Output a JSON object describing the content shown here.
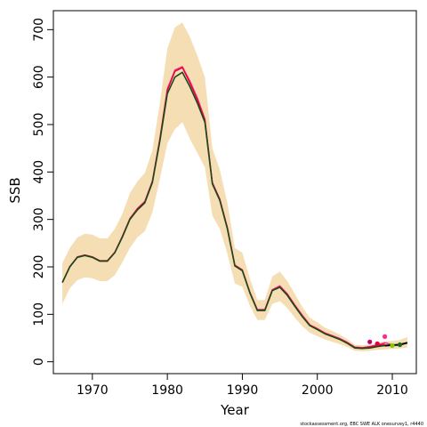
{
  "chart_data": {
    "type": "line",
    "xlabel": "Year",
    "ylabel": "SSB",
    "xlim": [
      1964.8,
      2013.2
    ],
    "ylim": [
      -25,
      740
    ],
    "x_ticks": [
      1970,
      1980,
      1990,
      2000,
      2010
    ],
    "y_ticks": [
      0,
      100,
      200,
      300,
      400,
      500,
      600,
      700
    ],
    "credit": "stockassessment.org, EBC SWE ALK onesurvey1, r4440",
    "colors": {
      "band": "#f5deb3",
      "final_line": "#000000",
      "retro_dark": "#1a4a1a",
      "retro_red": "#e0003c",
      "retro_pink": "#ff2a8a"
    },
    "years": [
      1966,
      1967,
      1968,
      1969,
      1970,
      1971,
      1972,
      1973,
      1974,
      1975,
      1976,
      1977,
      1978,
      1979,
      1980,
      1981,
      1982,
      1983,
      1984,
      1985,
      1986,
      1987,
      1988,
      1989,
      1990,
      1991,
      1992,
      1993,
      1994,
      1995,
      1996,
      1997,
      1998,
      1999,
      2000,
      2001,
      2002,
      2003,
      2004,
      2005,
      2006,
      2007,
      2008,
      2009,
      2010,
      2011,
      2012
    ],
    "series": [
      {
        "role": "estimate",
        "values": [
          167,
          200,
          220,
          224,
          220,
          212,
          212,
          230,
          263,
          300,
          320,
          335,
          378,
          465,
          565,
          600,
          610,
          580,
          545,
          505,
          375,
          340,
          280,
          202,
          192,
          145,
          108,
          108,
          150,
          157,
          140,
          117,
          95,
          76,
          68,
          59,
          53,
          47,
          39,
          29,
          28,
          29,
          32,
          34,
          35,
          36,
          40
        ]
      },
      {
        "role": "retro-1",
        "values": [
          167,
          201,
          221,
          225,
          221,
          213,
          213,
          231,
          265,
          302,
          323,
          338,
          381,
          470,
          575,
          615,
          622,
          592,
          556,
          512,
          378,
          343,
          283,
          204,
          194,
          147,
          110,
          110,
          152,
          160,
          143,
          120,
          98,
          78,
          70,
          61,
          55,
          49,
          41,
          31,
          30,
          32,
          36,
          40,
          36
        ]
      },
      {
        "role": "retro-2",
        "values": [
          167,
          201,
          221,
          225,
          221,
          213,
          213,
          231,
          264,
          301,
          322,
          337,
          380,
          469,
          572,
          612,
          620,
          588,
          552,
          509,
          377,
          342,
          282,
          203,
          193,
          146,
          109,
          109,
          151,
          158,
          142,
          118,
          96,
          77,
          69,
          60,
          54,
          48,
          40,
          30,
          29,
          31,
          34,
          37
        ]
      }
    ],
    "band": {
      "lower": [
        122,
        155,
        172,
        178,
        176,
        170,
        170,
        183,
        210,
        240,
        262,
        275,
        315,
        385,
        460,
        490,
        505,
        470,
        440,
        410,
        308,
        280,
        228,
        165,
        158,
        118,
        88,
        88,
        122,
        128,
        113,
        93,
        75,
        61,
        54,
        47,
        42,
        37,
        31,
        23,
        22,
        23,
        25,
        26,
        27,
        28,
        30
      ],
      "upper": [
        208,
        240,
        262,
        270,
        268,
        260,
        260,
        280,
        312,
        355,
        380,
        398,
        445,
        545,
        660,
        705,
        715,
        685,
        645,
        600,
        450,
        405,
        335,
        240,
        230,
        175,
        130,
        130,
        180,
        190,
        170,
        143,
        115,
        93,
        83,
        72,
        65,
        57,
        48,
        36,
        35,
        36,
        40,
        43,
        44,
        46,
        52
      ]
    },
    "retro_points": [
      {
        "year": 2007,
        "value": 42,
        "color": "#c2006a"
      },
      {
        "year": 2008,
        "value": 38,
        "color": "#e0003c"
      },
      {
        "year": 2009,
        "value": 53,
        "color": "#ff2a8a"
      },
      {
        "year": 2010,
        "value": 34,
        "color": "#7cd000"
      },
      {
        "year": 2011,
        "value": 36,
        "color": "#1a6a1a"
      }
    ]
  }
}
